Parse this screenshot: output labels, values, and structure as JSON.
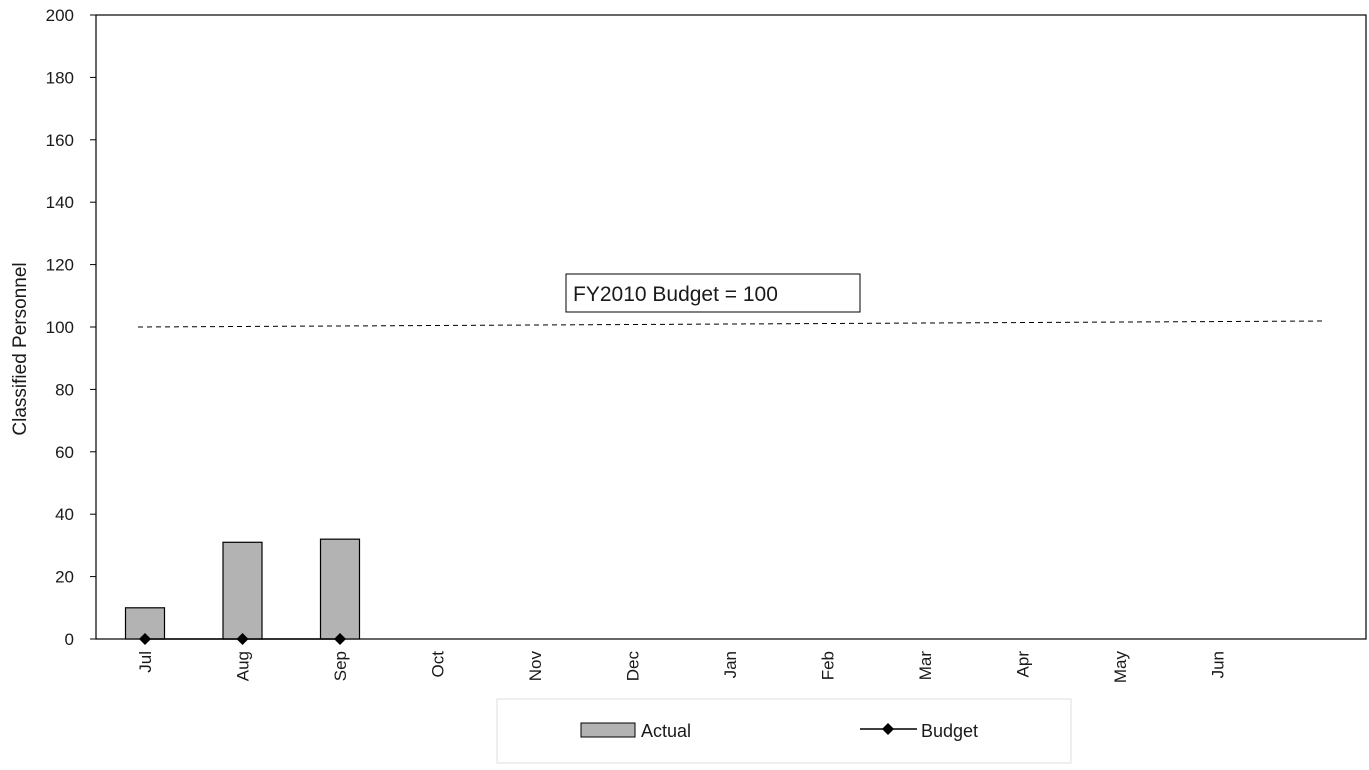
{
  "chart_data": {
    "type": "bar",
    "title": "",
    "xlabel": "",
    "ylabel": "Classified Personnel",
    "ylim": [
      0,
      200
    ],
    "yticks": [
      0,
      20,
      40,
      60,
      80,
      100,
      120,
      140,
      160,
      180,
      200
    ],
    "categories": [
      "Jul",
      "Aug",
      "Sep",
      "Oct",
      "Nov",
      "Dec",
      "Jan",
      "Feb",
      "Mar",
      "Apr",
      "May",
      "Jun"
    ],
    "series": [
      {
        "name": "Actual",
        "kind": "bar",
        "color": "#b3b3b3",
        "values": [
          10,
          31,
          32,
          null,
          null,
          null,
          null,
          null,
          null,
          null,
          null,
          null
        ]
      },
      {
        "name": "Budget",
        "kind": "line-markers",
        "color": "#000000",
        "values": [
          0,
          0,
          0,
          null,
          null,
          null,
          null,
          null,
          null,
          null,
          null,
          null
        ]
      }
    ],
    "reference_line": {
      "value": 100,
      "style": "dashed",
      "annotation": "FY2010 Budget = 100"
    },
    "grid": false,
    "legend": {
      "position": "bottom",
      "entries": [
        "Actual",
        "Budget"
      ]
    }
  }
}
